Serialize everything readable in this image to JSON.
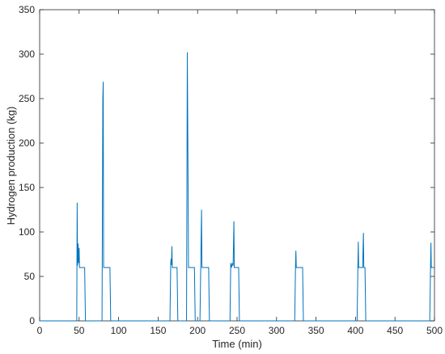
{
  "chart_data": {
    "type": "line",
    "x_label": "Time (min)",
    "y_label": "Hydrogen production (kg)",
    "x": [
      0,
      47,
      47.5,
      48,
      48.7,
      49.3,
      50,
      50.5,
      57,
      58,
      79,
      80,
      80.5,
      81,
      89,
      90,
      165,
      166,
      166.5,
      167,
      167.5,
      168,
      174,
      175,
      186,
      187,
      188,
      188.5,
      196,
      197,
      203,
      204,
      205,
      205.5,
      214,
      215,
      241,
      242,
      243,
      244,
      245,
      246,
      246.5,
      252,
      253,
      323,
      324,
      324.5,
      325,
      333,
      334,
      402,
      403,
      403.5,
      404,
      409,
      410,
      410.5,
      412,
      413,
      494,
      495,
      495.5,
      496,
      500
    ],
    "series": [
      {
        "name": "Hydrogen production",
        "color": "#0072bd",
        "values": [
          0,
          0,
          133,
          62,
          87,
          65,
          82,
          60,
          60,
          0,
          0,
          250,
          269,
          60,
          60,
          0,
          0,
          65,
          70,
          63,
          84,
          60,
          60,
          0,
          0,
          302,
          150,
          60,
          60,
          0,
          0,
          60,
          125,
          60,
          60,
          0,
          0,
          65,
          60,
          65,
          62,
          112,
          60,
          60,
          0,
          0,
          60,
          79,
          60,
          60,
          0,
          0,
          60,
          89,
          60,
          60,
          99,
          60,
          60,
          0,
          0,
          60,
          88,
          60,
          60
        ]
      }
    ],
    "xlim": [
      0,
      500
    ],
    "xticks": [
      0,
      50,
      100,
      150,
      200,
      250,
      300,
      350,
      400,
      450,
      500
    ],
    "ylim": [
      0,
      350
    ],
    "yticks": [
      0,
      50,
      100,
      150,
      200,
      250,
      300,
      350
    ],
    "grid": false
  }
}
